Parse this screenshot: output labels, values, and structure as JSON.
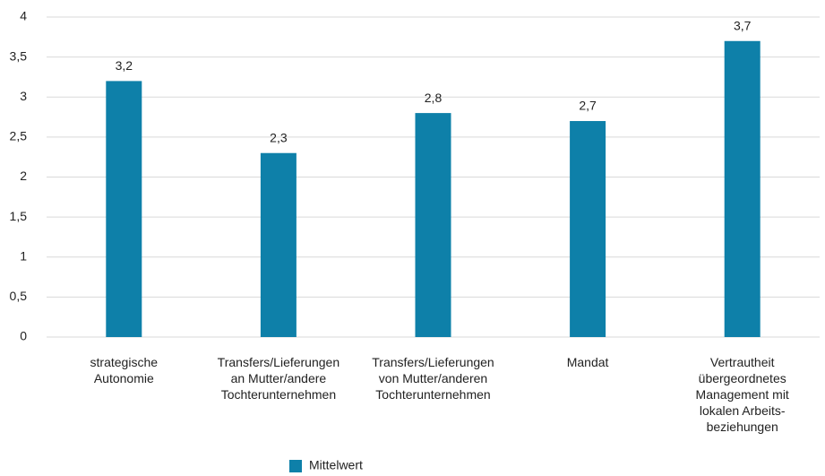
{
  "chart_data": {
    "type": "bar",
    "categories": [
      "strategische\nAutonomie",
      "Transfers/Lieferungen\nan Mutter/andere\nTochterunternehmen",
      "Transfers/Lieferungen\nvon Mutter/anderen\nTochterunternehmen",
      "Mandat",
      "Vertrautheit\nübergeordnetes\nManagement mit\nlokalen Arbeits-\nbeziehungen"
    ],
    "series": [
      {
        "name": "Mittelwert",
        "color": "#0e80a9",
        "values": [
          3.2,
          2.3,
          2.8,
          2.7,
          3.7
        ],
        "value_labels": [
          "3,2",
          "2,3",
          "2,8",
          "2,7",
          "3,7"
        ]
      }
    ],
    "ylim": [
      0,
      4
    ],
    "yticks": [
      0,
      {
        "value": 0.5,
        "label": "0,5"
      },
      1,
      {
        "value": 1.5,
        "label": "1,5"
      },
      2,
      {
        "value": 2.5,
        "label": "2,5"
      },
      3,
      {
        "value": 3.5,
        "label": "3,5"
      },
      4
    ],
    "grid": true,
    "legend": "bottom"
  }
}
